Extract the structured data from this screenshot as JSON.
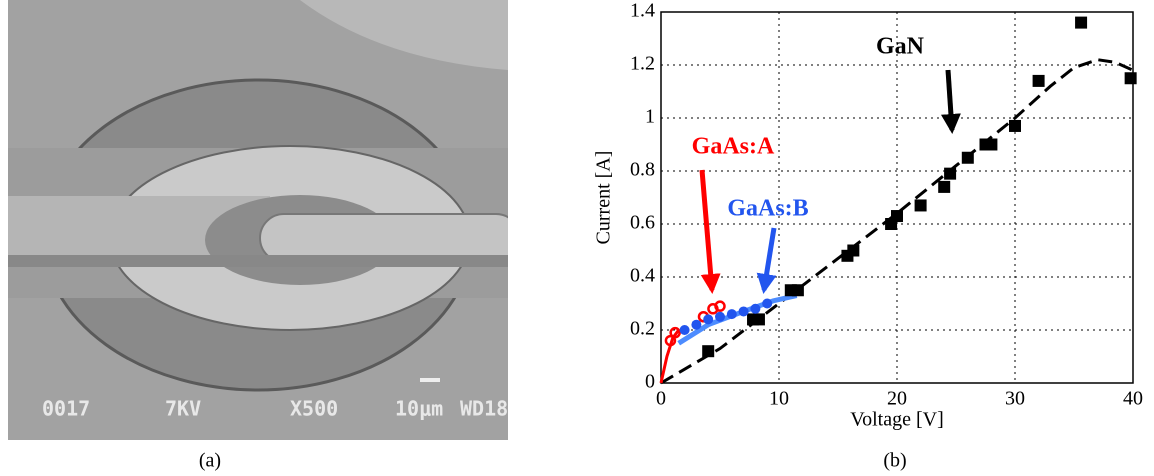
{
  "panel_a": {
    "sem_labels": [
      "0017",
      "7KV",
      "X500",
      "10μm",
      "WD18"
    ],
    "caption": "(a)"
  },
  "chart_data": {
    "type": "scatter",
    "caption": "(b)",
    "x_label": "Voltage [V]",
    "y_label": "Current [A]",
    "xlim": [
      0,
      40
    ],
    "xticks": [
      0,
      10,
      20,
      30,
      40
    ],
    "ylim": [
      0,
      1.4
    ],
    "yticks": [
      0,
      0.2,
      0.4,
      0.6,
      0.8,
      1,
      1.2,
      1.4
    ],
    "grid": true,
    "series": [
      {
        "name": "GaN",
        "color": "#000000",
        "marker": "square",
        "x": [
          4,
          7.8,
          8.3,
          11,
          11.6,
          15.8,
          16.3,
          19.5,
          20,
          22,
          24,
          24.5,
          26,
          27.5,
          28,
          30,
          32,
          35.6,
          39.8
        ],
        "values": [
          0.12,
          0.24,
          0.24,
          0.35,
          0.35,
          0.48,
          0.5,
          0.6,
          0.63,
          0.67,
          0.74,
          0.79,
          0.85,
          0.9,
          0.9,
          0.97,
          1.14,
          1.36,
          1.15
        ],
        "fit_x": [
          0,
          5,
          10,
          15,
          20,
          25,
          30,
          33,
          35,
          37,
          38.5,
          40
        ],
        "fit_values": [
          0,
          0.13,
          0.3,
          0.47,
          0.64,
          0.82,
          1.0,
          1.12,
          1.19,
          1.22,
          1.21,
          1.18
        ]
      },
      {
        "name": "GaAs:A",
        "color": "#ff0000",
        "marker": "open-circle",
        "x": [
          0.8,
          1.2,
          3.6,
          4.4,
          5
        ],
        "values": [
          0.16,
          0.19,
          0.25,
          0.28,
          0.29
        ],
        "fit_x": [
          0,
          0.5,
          1,
          1.5
        ],
        "fit_values": [
          0,
          0.1,
          0.17,
          0.2
        ]
      },
      {
        "name": "GaAs:B",
        "color": "#2255ee",
        "marker": "circle",
        "x": [
          2,
          3,
          4,
          5,
          6,
          7,
          8,
          9
        ],
        "values": [
          0.2,
          0.22,
          0.24,
          0.25,
          0.26,
          0.27,
          0.28,
          0.3
        ],
        "fit_x": [
          1.5,
          4,
          7,
          9.5,
          11.5
        ],
        "fit_values": [
          0.15,
          0.22,
          0.27,
          0.31,
          0.33
        ]
      }
    ]
  }
}
